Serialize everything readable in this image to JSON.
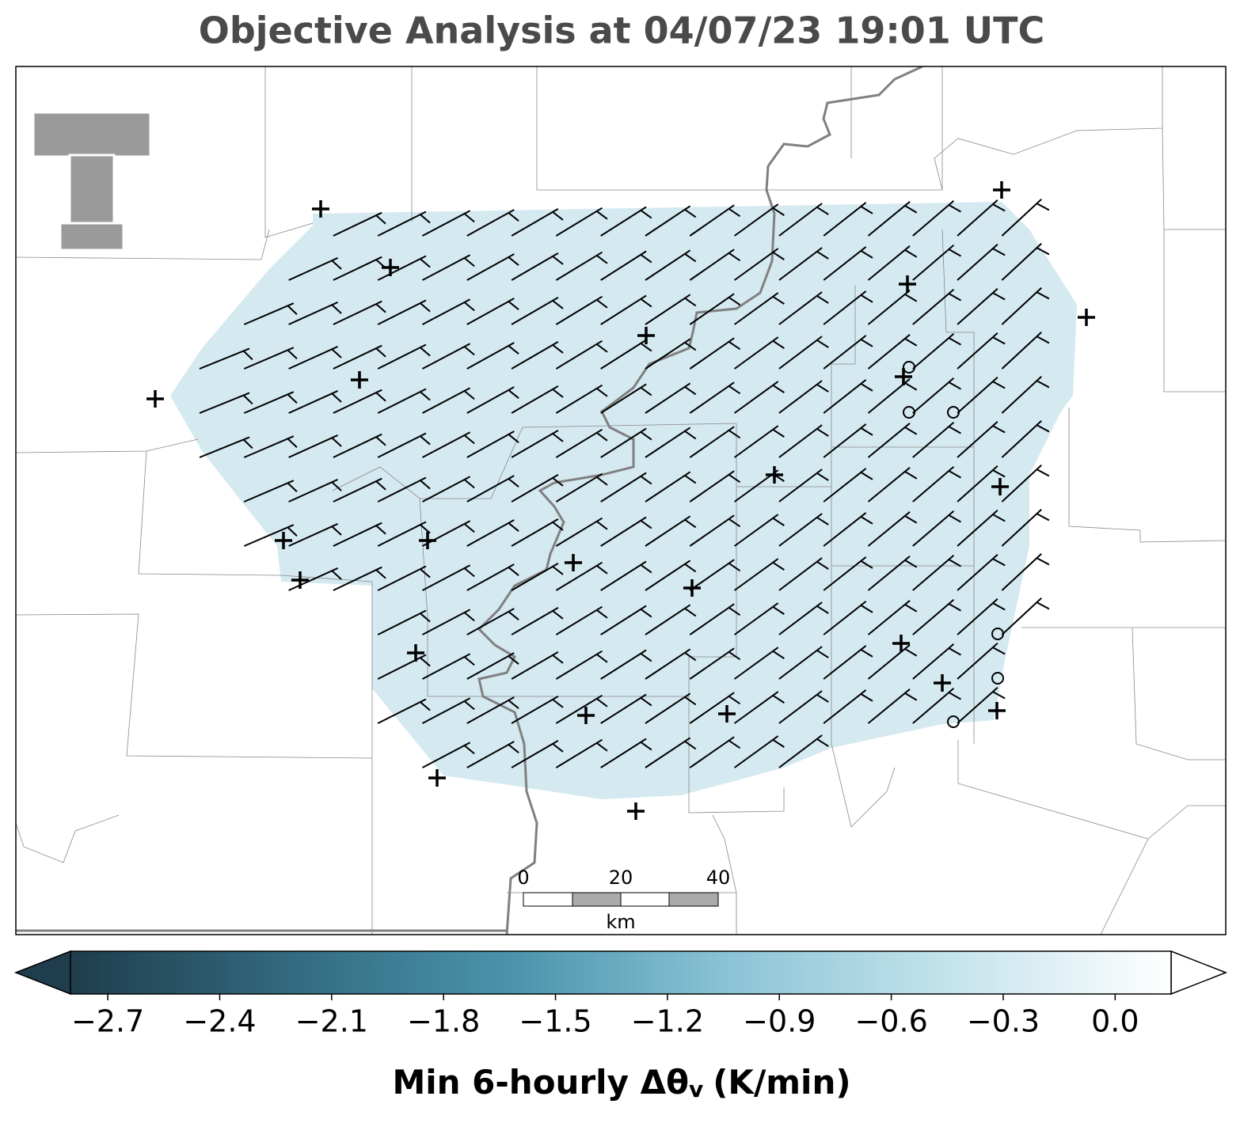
{
  "title": "Objective Analysis at 04/07/23 19:01 UTC",
  "scale_bar": {
    "ticks": [
      0,
      20,
      40
    ],
    "unit": "km"
  },
  "colorbar": {
    "clim": [
      -2.8,
      0.15
    ],
    "colormap": [
      "#1f3d4c",
      "#336a7f",
      "#4a93ab",
      "#8cc4d6",
      "#c4e3ec",
      "#ffffff"
    ],
    "ticks": [
      {
        "value": -2.7,
        "label": "−2.7"
      },
      {
        "value": -2.4,
        "label": "−2.4"
      },
      {
        "value": -2.1,
        "label": "−2.1"
      },
      {
        "value": -1.8,
        "label": "−1.8"
      },
      {
        "value": -1.5,
        "label": "−1.5"
      },
      {
        "value": -1.2,
        "label": "−1.2"
      },
      {
        "value": -0.9,
        "label": "−0.9"
      },
      {
        "value": -0.6,
        "label": "−0.6"
      },
      {
        "value": -0.3,
        "label": "−0.3"
      },
      {
        "value": 0.0,
        "label": "0.0"
      }
    ],
    "label": {
      "main": "Min 6-hourly Δθ",
      "subscript": "v",
      "unit": "(K/min)"
    }
  }
}
